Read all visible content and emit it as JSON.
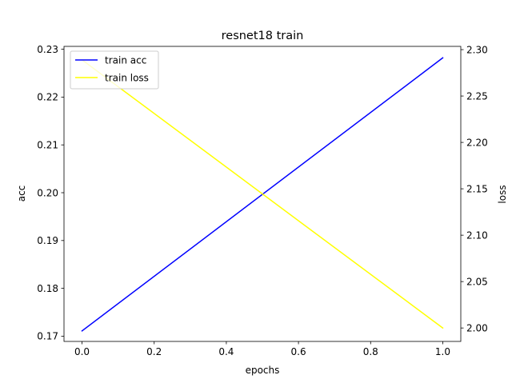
{
  "chart_data": {
    "type": "line",
    "title": "resnet18 train",
    "xlabel": "epochs",
    "ylabel_left": "acc",
    "ylabel_right": "loss",
    "x": [
      0.0,
      1.0
    ],
    "xlim": [
      -0.05,
      1.05
    ],
    "xticks": [
      0.0,
      0.2,
      0.4,
      0.6,
      0.8,
      1.0
    ],
    "xtick_labels": [
      "0.0",
      "0.2",
      "0.4",
      "0.6",
      "0.8",
      "1.0"
    ],
    "ylim_left": [
      0.1689,
      0.2306
    ],
    "yticks_left": [
      0.17,
      0.18,
      0.19,
      0.2,
      0.21,
      0.22,
      0.23
    ],
    "ytick_labels_left": [
      "0.17",
      "0.18",
      "0.19",
      "0.20",
      "0.21",
      "0.22",
      "0.23"
    ],
    "ylim_right": [
      1.9855,
      2.3035
    ],
    "yticks_right": [
      2.0,
      2.05,
      2.1,
      2.15,
      2.2,
      2.25,
      2.3
    ],
    "ytick_labels_right": [
      "2.00",
      "2.05",
      "2.10",
      "2.15",
      "2.20",
      "2.25",
      "2.30"
    ],
    "series": [
      {
        "name": "train acc",
        "axis": "left",
        "color": "#0000ff",
        "values": [
          0.1711,
          0.2282
        ]
      },
      {
        "name": "train loss",
        "axis": "right",
        "color": "#ffff00",
        "values": [
          2.289,
          2.0
        ]
      }
    ],
    "legend_position": "upper left",
    "grid": false
  }
}
